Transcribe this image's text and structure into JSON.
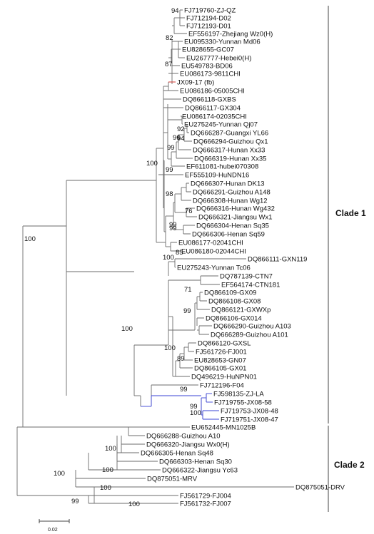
{
  "tree": {
    "branch_color": "#6b6b6b",
    "highlight_colors": {
      "red": "#e0322a",
      "blue": "#3a43d6"
    },
    "taxa": [
      "FJ719760-ZJ-QZ",
      "FJ712194-D02",
      "FJ712193-D01",
      "EF556197-Zhejiang Wz0(H)",
      "EU095330-Yunnan Md06",
      "EU828655-GC07",
      "EU267777-Hebei0(H)",
      "EU549783-BD06",
      "EU086173-9811CHI",
      "JX09-17 (fb)",
      "EU086186-05005CHI",
      "DQ866118-GXBS",
      "DQ866117-GX304",
      "EU086174-02035CHI",
      "EU275245-Yunnan Qj07",
      "DQ666287-Guangxi YL66",
      "DQ666294-Guizhou Qx1",
      "DQ666317-Hunan Xx33",
      "DQ666319-Hunan Xx35",
      "EF611081-hubei070308",
      "EF555109-HuNDN16",
      "DQ666307-Hunan DK13",
      "DQ666291-Guizhou A148",
      "DQ666308-Hunan Wg12",
      "DQ666316-Hunan Wg432",
      "DQ666321-Jiangsu Wx1",
      "DQ666304-Henan Sq35",
      "DQ666306-Henan Sq59",
      "EU086177-02041CHI",
      "EU086180-02044CHI",
      "DQ866111-GXN119",
      "EU275243-Yunnan Tc06",
      "DQ787139-CTN7",
      "EF564174-CTN181",
      "DQ866109-GX09",
      "DQ866108-GX08",
      "DQ866121-GXWXp",
      "DQ866106-GX014",
      "DQ666290-Guizhou A103",
      "DQ666289-Guizhou A101",
      "DQ866120-GXSL",
      "FJ561726-FJ001",
      "EU828653-GN07",
      "DQ866105-GX01",
      "DQ496219-HuNPN01",
      "FJ712196-F04",
      "FJ598135-ZJ-LA",
      "FJ719755-JX08-58",
      "FJ719753-JX08-48",
      "FJ719751-JX08-47",
      "EU652445-MN1025B",
      "DQ666288-Guizhou A10",
      "DQ666320-Jiangsu Wx0(H)",
      "DQ666305-Henan Sq48",
      "DQ666303-Henan Sq30",
      "DQ666322-Jiangsu Yc63",
      "DQ875051-MRV",
      "DQ875051-DRV",
      "FJ561729-FJ004",
      "FJ561732-FJ007"
    ],
    "bootstrap": [
      "94",
      "82",
      "87",
      "92",
      "96",
      "94",
      "99",
      "99",
      "100",
      "98",
      "76",
      "99",
      "99",
      "100",
      "85",
      "100",
      "71",
      "99",
      "100",
      "89",
      "99",
      "99",
      "100",
      "100",
      "100",
      "100",
      "99",
      "100",
      "100",
      "100"
    ],
    "clades": [
      "Clade 1",
      "Clade 2"
    ],
    "scale_bar": "0.02"
  }
}
